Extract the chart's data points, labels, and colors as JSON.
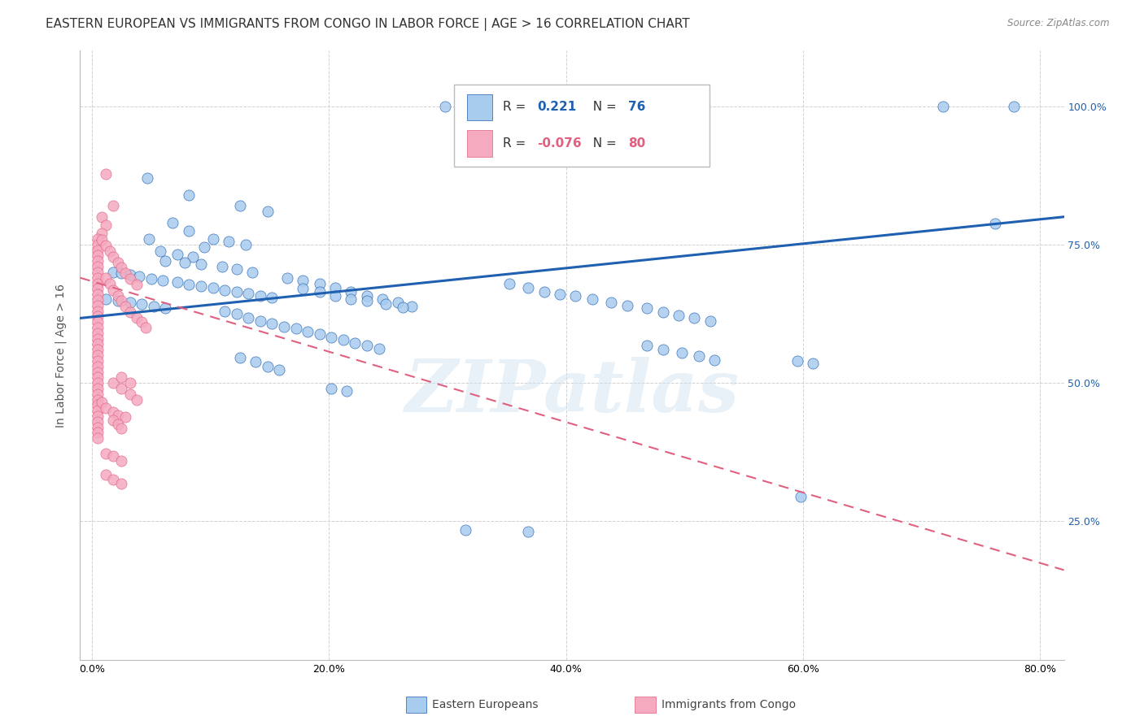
{
  "title": "EASTERN EUROPEAN VS IMMIGRANTS FROM CONGO IN LABOR FORCE | AGE > 16 CORRELATION CHART",
  "source": "Source: ZipAtlas.com",
  "ylabel": "In Labor Force | Age > 16",
  "x_tick_labels": [
    "0.0%",
    "20.0%",
    "40.0%",
    "60.0%",
    "80.0%"
  ],
  "x_tick_positions": [
    0.0,
    0.2,
    0.4,
    0.6,
    0.8
  ],
  "y_tick_labels": [
    "25.0%",
    "50.0%",
    "75.0%",
    "100.0%"
  ],
  "y_tick_positions": [
    0.25,
    0.5,
    0.75,
    1.0
  ],
  "xlim": [
    -0.01,
    0.82
  ],
  "ylim": [
    0.0,
    1.1
  ],
  "watermark": "ZIPatlas",
  "blue_scatter": [
    [
      0.298,
      1.0
    ],
    [
      0.047,
      0.87
    ],
    [
      0.082,
      0.84
    ],
    [
      0.125,
      0.82
    ],
    [
      0.148,
      0.81
    ],
    [
      0.068,
      0.79
    ],
    [
      0.082,
      0.775
    ],
    [
      0.048,
      0.76
    ],
    [
      0.102,
      0.76
    ],
    [
      0.115,
      0.755
    ],
    [
      0.13,
      0.75
    ],
    [
      0.095,
      0.745
    ],
    [
      0.058,
      0.738
    ],
    [
      0.072,
      0.732
    ],
    [
      0.085,
      0.728
    ],
    [
      0.062,
      0.72
    ],
    [
      0.078,
      0.718
    ],
    [
      0.092,
      0.715
    ],
    [
      0.11,
      0.71
    ],
    [
      0.122,
      0.705
    ],
    [
      0.135,
      0.7
    ],
    [
      0.018,
      0.7
    ],
    [
      0.025,
      0.698
    ],
    [
      0.032,
      0.695
    ],
    [
      0.04,
      0.692
    ],
    [
      0.05,
      0.688
    ],
    [
      0.06,
      0.685
    ],
    [
      0.072,
      0.682
    ],
    [
      0.082,
      0.678
    ],
    [
      0.092,
      0.675
    ],
    [
      0.102,
      0.672
    ],
    [
      0.112,
      0.668
    ],
    [
      0.122,
      0.665
    ],
    [
      0.132,
      0.662
    ],
    [
      0.142,
      0.658
    ],
    [
      0.152,
      0.655
    ],
    [
      0.012,
      0.652
    ],
    [
      0.022,
      0.648
    ],
    [
      0.032,
      0.645
    ],
    [
      0.042,
      0.642
    ],
    [
      0.052,
      0.638
    ],
    [
      0.062,
      0.635
    ],
    [
      0.165,
      0.69
    ],
    [
      0.178,
      0.685
    ],
    [
      0.192,
      0.68
    ],
    [
      0.205,
      0.672
    ],
    [
      0.218,
      0.665
    ],
    [
      0.232,
      0.658
    ],
    [
      0.245,
      0.652
    ],
    [
      0.258,
      0.645
    ],
    [
      0.27,
      0.638
    ],
    [
      0.178,
      0.67
    ],
    [
      0.192,
      0.665
    ],
    [
      0.205,
      0.658
    ],
    [
      0.218,
      0.652
    ],
    [
      0.232,
      0.648
    ],
    [
      0.248,
      0.642
    ],
    [
      0.262,
      0.636
    ],
    [
      0.112,
      0.63
    ],
    [
      0.122,
      0.625
    ],
    [
      0.132,
      0.618
    ],
    [
      0.142,
      0.612
    ],
    [
      0.152,
      0.608
    ],
    [
      0.162,
      0.602
    ],
    [
      0.172,
      0.598
    ],
    [
      0.182,
      0.592
    ],
    [
      0.192,
      0.588
    ],
    [
      0.202,
      0.582
    ],
    [
      0.212,
      0.578
    ],
    [
      0.222,
      0.572
    ],
    [
      0.232,
      0.568
    ],
    [
      0.242,
      0.562
    ],
    [
      0.125,
      0.545
    ],
    [
      0.138,
      0.538
    ],
    [
      0.148,
      0.53
    ],
    [
      0.158,
      0.524
    ],
    [
      0.202,
      0.49
    ],
    [
      0.215,
      0.485
    ],
    [
      0.352,
      0.68
    ],
    [
      0.368,
      0.672
    ],
    [
      0.382,
      0.665
    ],
    [
      0.395,
      0.66
    ],
    [
      0.408,
      0.658
    ],
    [
      0.422,
      0.652
    ],
    [
      0.438,
      0.645
    ],
    [
      0.452,
      0.64
    ],
    [
      0.468,
      0.635
    ],
    [
      0.482,
      0.628
    ],
    [
      0.495,
      0.622
    ],
    [
      0.508,
      0.618
    ],
    [
      0.522,
      0.612
    ],
    [
      0.468,
      0.568
    ],
    [
      0.482,
      0.56
    ],
    [
      0.498,
      0.555
    ],
    [
      0.512,
      0.548
    ],
    [
      0.525,
      0.542
    ],
    [
      0.595,
      0.54
    ],
    [
      0.608,
      0.535
    ],
    [
      0.315,
      0.235
    ],
    [
      0.368,
      0.232
    ],
    [
      0.598,
      0.295
    ],
    [
      0.718,
      1.0
    ],
    [
      0.778,
      1.0
    ],
    [
      0.762,
      0.788
    ]
  ],
  "pink_scatter": [
    [
      0.012,
      0.878
    ],
    [
      0.018,
      0.82
    ],
    [
      0.008,
      0.8
    ],
    [
      0.012,
      0.785
    ],
    [
      0.008,
      0.77
    ],
    [
      0.005,
      0.76
    ],
    [
      0.005,
      0.75
    ],
    [
      0.005,
      0.74
    ],
    [
      0.005,
      0.73
    ],
    [
      0.005,
      0.72
    ],
    [
      0.005,
      0.71
    ],
    [
      0.005,
      0.7
    ],
    [
      0.005,
      0.69
    ],
    [
      0.005,
      0.68
    ],
    [
      0.005,
      0.67
    ],
    [
      0.005,
      0.66
    ],
    [
      0.005,
      0.65
    ],
    [
      0.005,
      0.64
    ],
    [
      0.005,
      0.63
    ],
    [
      0.005,
      0.62
    ],
    [
      0.005,
      0.61
    ],
    [
      0.005,
      0.6
    ],
    [
      0.005,
      0.59
    ],
    [
      0.005,
      0.58
    ],
    [
      0.005,
      0.57
    ],
    [
      0.005,
      0.56
    ],
    [
      0.005,
      0.55
    ],
    [
      0.005,
      0.54
    ],
    [
      0.005,
      0.53
    ],
    [
      0.005,
      0.52
    ],
    [
      0.005,
      0.51
    ],
    [
      0.005,
      0.5
    ],
    [
      0.005,
      0.49
    ],
    [
      0.005,
      0.48
    ],
    [
      0.005,
      0.47
    ],
    [
      0.005,
      0.46
    ],
    [
      0.005,
      0.45
    ],
    [
      0.005,
      0.44
    ],
    [
      0.005,
      0.43
    ],
    [
      0.005,
      0.42
    ],
    [
      0.005,
      0.41
    ],
    [
      0.005,
      0.4
    ],
    [
      0.012,
      0.69
    ],
    [
      0.015,
      0.68
    ],
    [
      0.018,
      0.668
    ],
    [
      0.022,
      0.658
    ],
    [
      0.025,
      0.648
    ],
    [
      0.028,
      0.638
    ],
    [
      0.032,
      0.628
    ],
    [
      0.038,
      0.618
    ],
    [
      0.042,
      0.61
    ],
    [
      0.045,
      0.6
    ],
    [
      0.008,
      0.758
    ],
    [
      0.012,
      0.748
    ],
    [
      0.015,
      0.738
    ],
    [
      0.018,
      0.728
    ],
    [
      0.022,
      0.718
    ],
    [
      0.025,
      0.708
    ],
    [
      0.028,
      0.698
    ],
    [
      0.032,
      0.688
    ],
    [
      0.038,
      0.678
    ],
    [
      0.018,
      0.5
    ],
    [
      0.025,
      0.49
    ],
    [
      0.032,
      0.48
    ],
    [
      0.038,
      0.47
    ],
    [
      0.025,
      0.51
    ],
    [
      0.032,
      0.5
    ],
    [
      0.008,
      0.465
    ],
    [
      0.012,
      0.455
    ],
    [
      0.018,
      0.448
    ],
    [
      0.022,
      0.442
    ],
    [
      0.028,
      0.438
    ],
    [
      0.018,
      0.432
    ],
    [
      0.022,
      0.425
    ],
    [
      0.025,
      0.418
    ],
    [
      0.012,
      0.372
    ],
    [
      0.012,
      0.335
    ],
    [
      0.018,
      0.368
    ],
    [
      0.018,
      0.325
    ],
    [
      0.025,
      0.36
    ],
    [
      0.025,
      0.318
    ]
  ],
  "blue_line": {
    "x0": -0.01,
    "y0": 0.617,
    "x1": 0.82,
    "y1": 0.8
  },
  "pink_line": {
    "x0": -0.01,
    "y0": 0.69,
    "x1": 0.82,
    "y1": 0.162
  },
  "scatter_blue_color": "#a8ccee",
  "scatter_pink_color": "#f5aac0",
  "line_blue_color": "#2060b0",
  "line_pink_color": "#e06080",
  "grid_color": "#cccccc",
  "background_color": "#ffffff",
  "title_fontsize": 11,
  "axis_label_fontsize": 10,
  "tick_fontsize": 9
}
